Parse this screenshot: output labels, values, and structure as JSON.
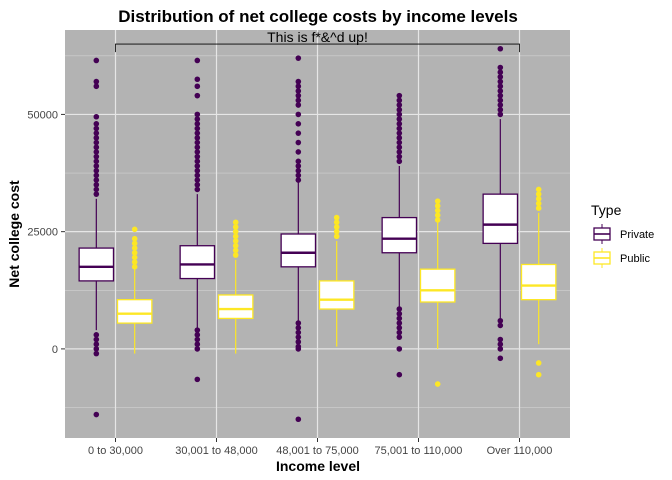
{
  "chart_data": {
    "type": "box",
    "title": "Distribution of net college costs by income levels",
    "xlabel": "Income level",
    "ylabel": "Net college cost",
    "categories": [
      "0 to 30,000",
      "30,001 to 48,000",
      "48,001 to 75,000",
      "75,001 to 110,000",
      "Over 110,000"
    ],
    "ylim": [
      -19000,
      68000
    ],
    "yticks": [
      0,
      25000,
      50000
    ],
    "ytick_labels": [
      "0",
      "25000",
      "50000"
    ],
    "background": "#b3b3b3",
    "grid": true,
    "legend": {
      "title": "Type",
      "position": "right"
    },
    "annotation": {
      "text": "This is f*&^d up!",
      "from_category": 0,
      "to_category": 4,
      "y": 65000
    },
    "series": [
      {
        "name": "Private",
        "color": "#440154",
        "boxes": [
          {
            "whisker_low": 4000,
            "q1": 14500,
            "median": 17500,
            "q3": 21500,
            "whisker_high": 32000,
            "outliers": [
              61500,
              57000,
              56000,
              49500,
              48000,
              47000,
              46000,
              45000,
              44000,
              43000,
              42000,
              41000,
              40000,
              39000,
              38000,
              37000,
              36000,
              35000,
              34000,
              33000,
              3000,
              2000,
              1000,
              0,
              -1000,
              -14000
            ]
          },
          {
            "whisker_low": 4500,
            "q1": 15000,
            "median": 18000,
            "q3": 22000,
            "whisker_high": 33000,
            "outliers": [
              61500,
              57500,
              56000,
              54000,
              50000,
              49000,
              48000,
              47000,
              46000,
              45000,
              44000,
              43000,
              42000,
              41000,
              40000,
              39000,
              38000,
              37000,
              36000,
              35000,
              34000,
              4000,
              3000,
              2000,
              1000,
              0,
              -6500
            ]
          },
          {
            "whisker_low": 6000,
            "q1": 17500,
            "median": 20500,
            "q3": 24500,
            "whisker_high": 35500,
            "outliers": [
              62000,
              57000,
              56000,
              55000,
              54000,
              53000,
              52000,
              50000,
              48000,
              46000,
              44000,
              42000,
              40000,
              39000,
              38000,
              37000,
              36000,
              5500,
              4500,
              3500,
              2500,
              1500,
              500,
              0,
              -15000
            ]
          },
          {
            "whisker_low": 9000,
            "q1": 20500,
            "median": 23500,
            "q3": 28000,
            "whisker_high": 39000,
            "outliers": [
              54000,
              53000,
              52000,
              51000,
              50000,
              49000,
              48000,
              47000,
              46000,
              45000,
              44000,
              43000,
              42000,
              41000,
              40000,
              8500,
              7500,
              6500,
              5500,
              4500,
              3500,
              2500,
              0,
              -5500
            ]
          },
          {
            "whisker_low": 6500,
            "q1": 22500,
            "median": 26500,
            "q3": 33000,
            "whisker_high": 49000,
            "outliers": [
              64000,
              60000,
              59000,
              58000,
              57000,
              56000,
              55000,
              54000,
              53000,
              52000,
              51000,
              50000,
              6000,
              5000,
              2000,
              1000,
              0,
              -2000
            ]
          }
        ]
      },
      {
        "name": "Public",
        "color": "#fde725",
        "boxes": [
          {
            "whisker_low": -1000,
            "q1": 5500,
            "median": 7500,
            "q3": 10500,
            "whisker_high": 17000,
            "outliers": [
              25500,
              23500,
              22500,
              21500,
              20500,
              19500,
              18500,
              17500
            ]
          },
          {
            "whisker_low": -1000,
            "q1": 6500,
            "median": 8500,
            "q3": 11500,
            "whisker_high": 19000,
            "outliers": [
              27000,
              26000,
              25000,
              24000,
              23000,
              22000,
              21000,
              20000
            ]
          },
          {
            "whisker_low": 500,
            "q1": 8500,
            "median": 10500,
            "q3": 14500,
            "whisker_high": 23000,
            "outliers": [
              28000,
              27000,
              26000,
              25000,
              24000
            ]
          },
          {
            "whisker_low": 0,
            "q1": 10000,
            "median": 12500,
            "q3": 17000,
            "whisker_high": 27000,
            "outliers": [
              31500,
              30500,
              29500,
              28500,
              27500,
              -7500
            ]
          },
          {
            "whisker_low": 1000,
            "q1": 10500,
            "median": 13500,
            "q3": 18000,
            "whisker_high": 29000,
            "outliers": [
              34000,
              33000,
              32000,
              31000,
              30000,
              -3000,
              -5500
            ]
          }
        ]
      }
    ]
  }
}
